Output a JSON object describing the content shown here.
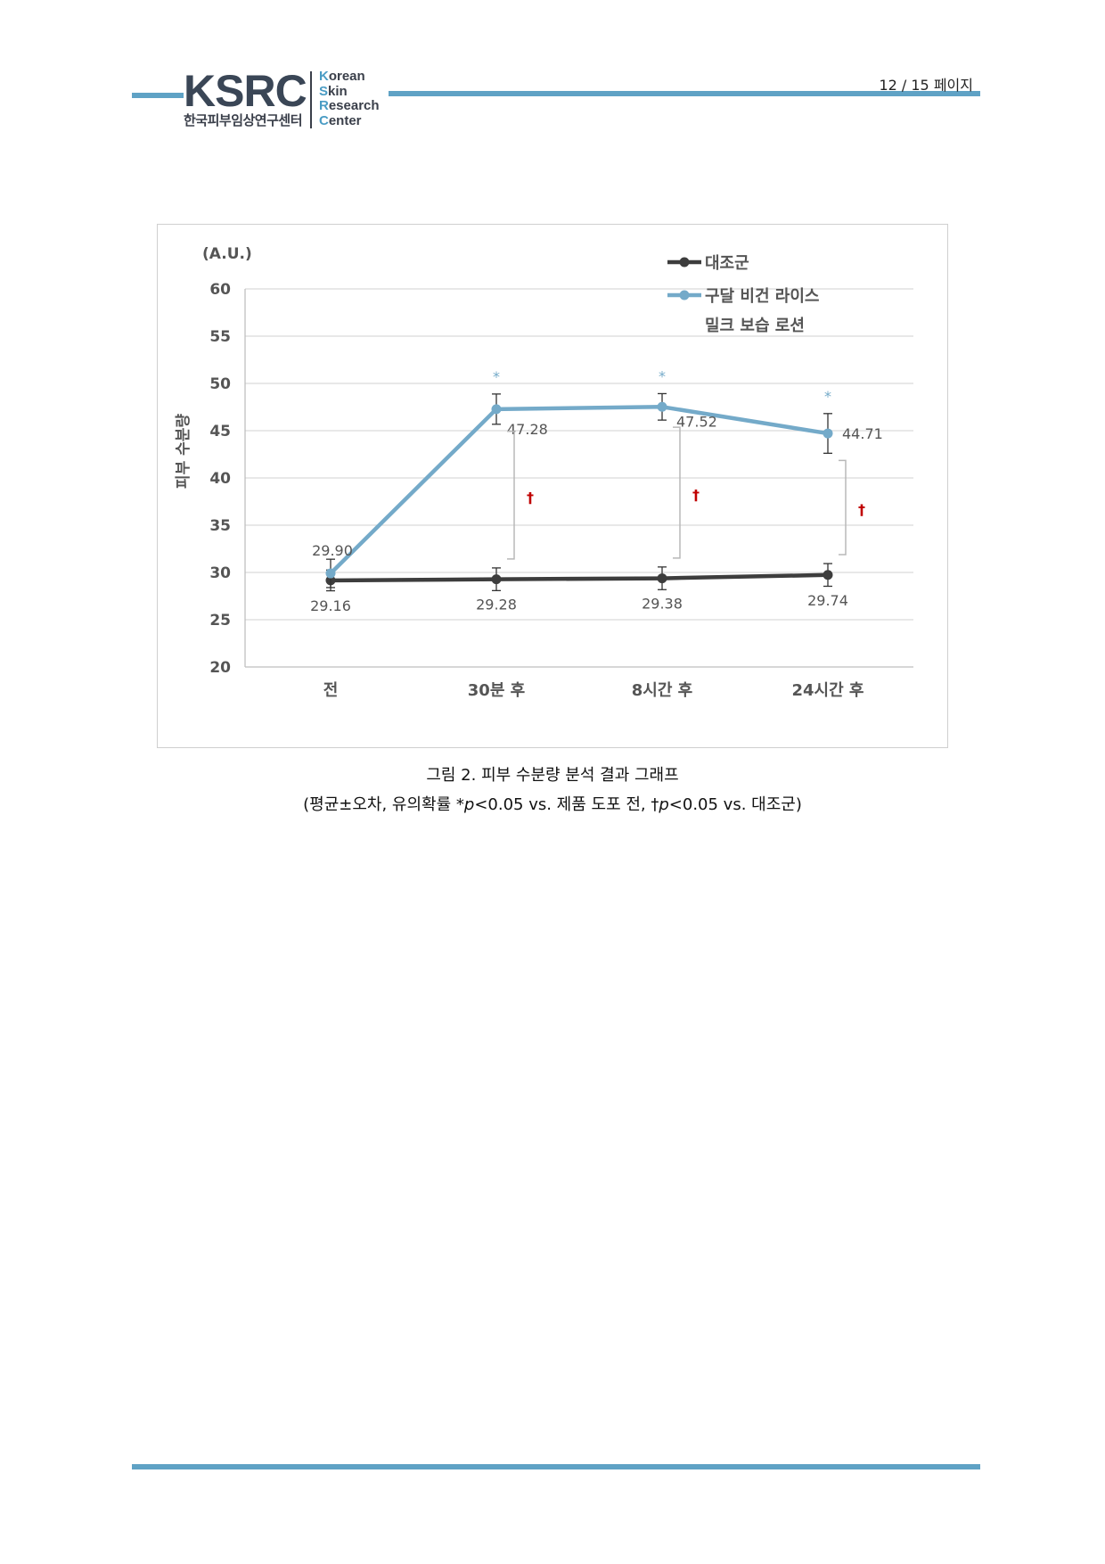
{
  "header": {
    "logo_text": "KSRC",
    "logo_subtitle": "한국피부임상연구센터",
    "logo_words": [
      "Korean",
      "Skin",
      "Research",
      "Center"
    ],
    "page_current": "12",
    "page_sep": "/",
    "page_total": "15",
    "page_label": "페이지"
  },
  "colors": {
    "brand_blue": "#5fa2c5",
    "logo_dark": "#3a4656",
    "control_series": "#3d3d3d",
    "product_series": "#74aac9",
    "dagger_red": "#c00000"
  },
  "chart_data": {
    "type": "line",
    "unit_label": "(A.U.)",
    "ylabel": "피부 수분량",
    "ylim": [
      20,
      60
    ],
    "yticks": [
      20,
      25,
      30,
      35,
      40,
      45,
      50,
      55,
      60
    ],
    "grid": true,
    "legend_position": "top-right",
    "categories": [
      "전",
      "30분 후",
      "8시간 후",
      "24시간 후"
    ],
    "series": [
      {
        "name": "대조군",
        "color": "#3d3d3d",
        "values": [
          29.16,
          29.28,
          29.38,
          29.74
        ],
        "labels": [
          "29.16",
          "29.28",
          "29.38",
          "29.74"
        ],
        "error": [
          1.1,
          1.2,
          1.2,
          1.2
        ]
      },
      {
        "name": "구달 비건 라이스 밀크 보습 로션",
        "name_lines": [
          "구달 비건 라이스",
          "밀크 보습 로션"
        ],
        "color": "#74aac9",
        "values": [
          29.9,
          47.28,
          47.52,
          44.71
        ],
        "labels": [
          "29.90",
          "47.28",
          "47.52",
          "44.71"
        ],
        "error": [
          1.5,
          1.6,
          1.4,
          2.1
        ]
      }
    ],
    "significance": {
      "vs_baseline_mark": "*",
      "vs_baseline_at": [
        1,
        2,
        3
      ],
      "vs_control_mark": "†",
      "vs_control_at": [
        1,
        2,
        3
      ]
    }
  },
  "caption": {
    "line1": "그림 2. 피부 수분량 분석 결과 그래프",
    "line2_a": "(평균±오차, 유의확률 *",
    "p": "p",
    "line2_b": "<0.05 vs. 제품 도포 전, †",
    "line2_c": "<0.05 vs. 대조군)"
  }
}
